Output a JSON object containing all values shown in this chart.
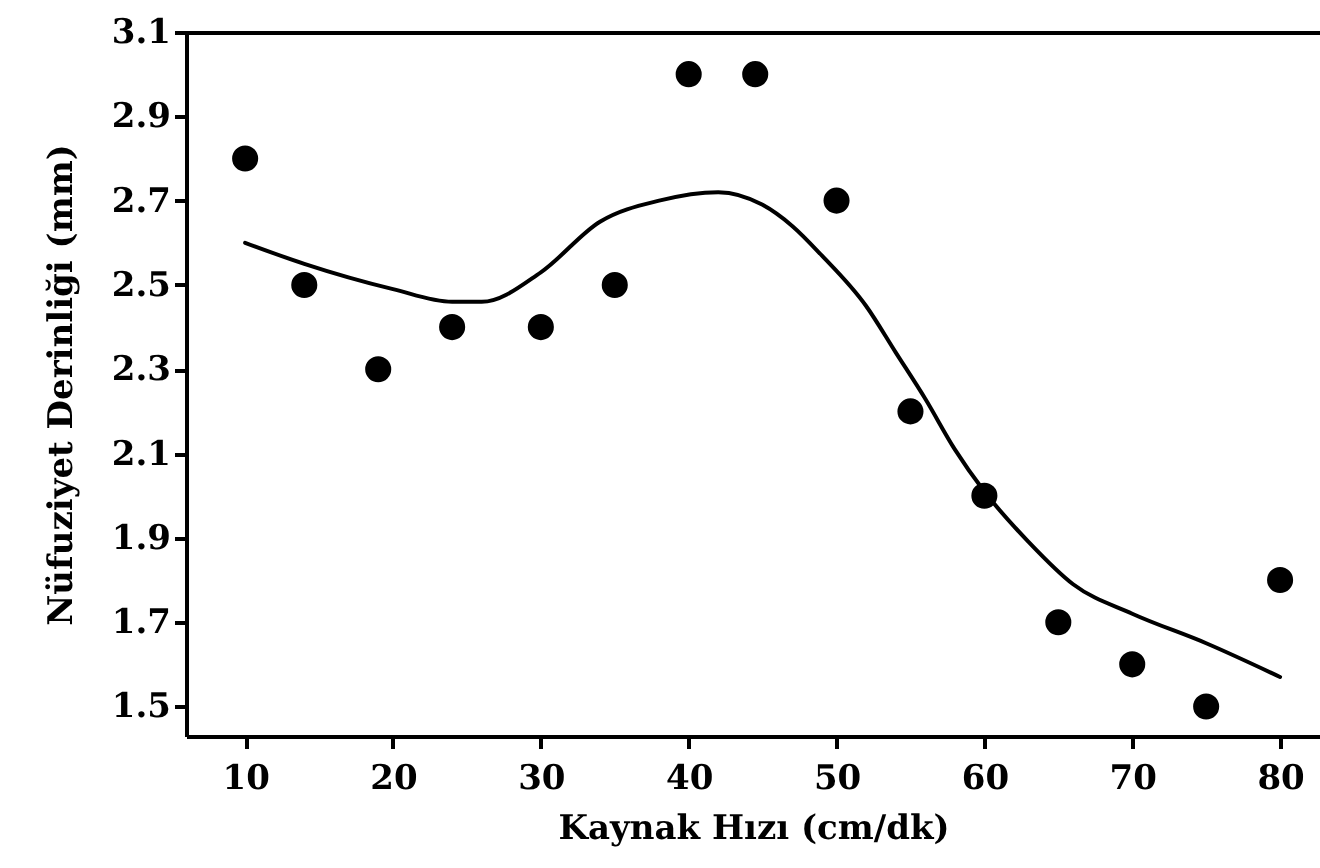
{
  "chart_data": {
    "type": "scatter",
    "xlabel": "Kaynak Hızı (cm/dk)",
    "ylabel": "Nüfuziyet Derinliği (mm)",
    "xlim": [
      6,
      82.7
    ],
    "ylim": [
      1.43,
      3.1
    ],
    "xticks": [
      10,
      20,
      30,
      40,
      50,
      60,
      70,
      80
    ],
    "yticks": [
      1.5,
      1.7,
      1.9,
      2.1,
      2.3,
      2.5,
      2.7,
      2.9,
      3.1
    ],
    "series": [
      {
        "marker": "circle",
        "color": "#000000",
        "x": [
          10,
          14,
          19,
          24,
          30,
          35,
          40,
          44.5,
          50,
          55,
          60,
          65,
          70,
          75,
          80
        ],
        "values": [
          2.8,
          2.5,
          2.3,
          2.4,
          2.4,
          2.5,
          3.0,
          3.0,
          2.7,
          2.2,
          2.0,
          1.7,
          1.6,
          1.5,
          1.8
        ]
      },
      {
        "type": "line",
        "color": "#000000",
        "line_style": "solid",
        "x": [
          10,
          14,
          20,
          24,
          26,
          30,
          34,
          38,
          42,
          45,
          47,
          49,
          52,
          54,
          56,
          58,
          60,
          63,
          66,
          70,
          75,
          80
        ],
        "values": [
          2.6,
          2.55,
          2.49,
          2.46,
          2.46,
          2.53,
          2.65,
          2.7,
          2.72,
          2.69,
          2.64,
          2.57,
          2.45,
          2.34,
          2.23,
          2.11,
          2.01,
          1.89,
          1.79,
          1.72,
          1.65,
          1.57
        ]
      }
    ]
  }
}
